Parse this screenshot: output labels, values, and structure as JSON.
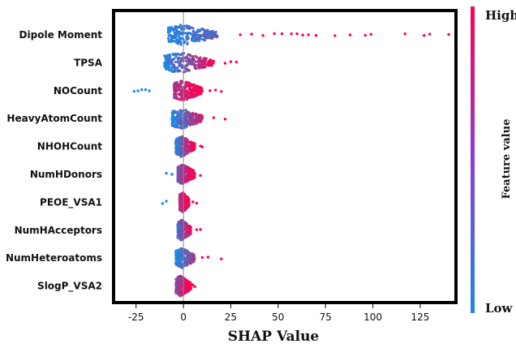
{
  "chart_data": {
    "type": "scatter",
    "subtype": "shap-beeswarm",
    "xlabel": "SHAP Value",
    "ylabel": "",
    "xlim": [
      -36,
      143
    ],
    "xticks": [
      -25,
      0,
      25,
      50,
      75,
      100,
      125
    ],
    "features": [
      {
        "name": "Dipole Moment",
        "min": -24,
        "max": 140,
        "core": [
          -8,
          18
        ],
        "tail_points": [
          30,
          36,
          42,
          48,
          52,
          57,
          60,
          63,
          66,
          70,
          80,
          88,
          96,
          99,
          117,
          127,
          130,
          140
        ]
      },
      {
        "name": "TPSA",
        "min": -12,
        "max": 28,
        "core": [
          -10,
          16
        ],
        "tail_points": [
          22,
          25,
          28
        ]
      },
      {
        "name": "NOCount",
        "min": -26,
        "max": 20,
        "core": [
          -5,
          10
        ],
        "tail_points": [
          -26,
          -24,
          -22,
          -20,
          -18,
          14,
          17,
          20
        ]
      },
      {
        "name": "HeavyAtomCount",
        "min": -8,
        "max": 22,
        "core": [
          -6,
          10
        ],
        "tail_points": [
          16,
          22
        ]
      },
      {
        "name": "NHOHCount",
        "min": -6,
        "max": 10,
        "core": [
          -4,
          6
        ],
        "tail_points": [
          9,
          10
        ]
      },
      {
        "name": "NumHDonors",
        "min": -9,
        "max": 10,
        "core": [
          -3,
          6
        ],
        "tail_points": [
          -9,
          -6,
          9
        ]
      },
      {
        "name": "PEOE_VSA1",
        "min": -11,
        "max": 7,
        "core": [
          -2,
          3
        ],
        "tail_points": [
          -11,
          -9,
          5,
          7
        ]
      },
      {
        "name": "NumHAcceptors",
        "min": -6,
        "max": 9,
        "core": [
          -3,
          4
        ],
        "tail_points": [
          7,
          9
        ]
      },
      {
        "name": "NumHeteroatoms",
        "min": -6,
        "max": 20,
        "core": [
          -4,
          6
        ],
        "tail_points": [
          10,
          13,
          20
        ]
      },
      {
        "name": "SlogP_VSA2",
        "min": -9,
        "max": 6,
        "core": [
          -4,
          4
        ],
        "tail_points": [
          5,
          6
        ]
      }
    ],
    "colorbar": {
      "title": "Feature value",
      "high_label": "High",
      "low_label": "Low",
      "low_color": "#1e88e5",
      "high_color": "#ff0052"
    },
    "grid": false,
    "zero_line": true
  }
}
